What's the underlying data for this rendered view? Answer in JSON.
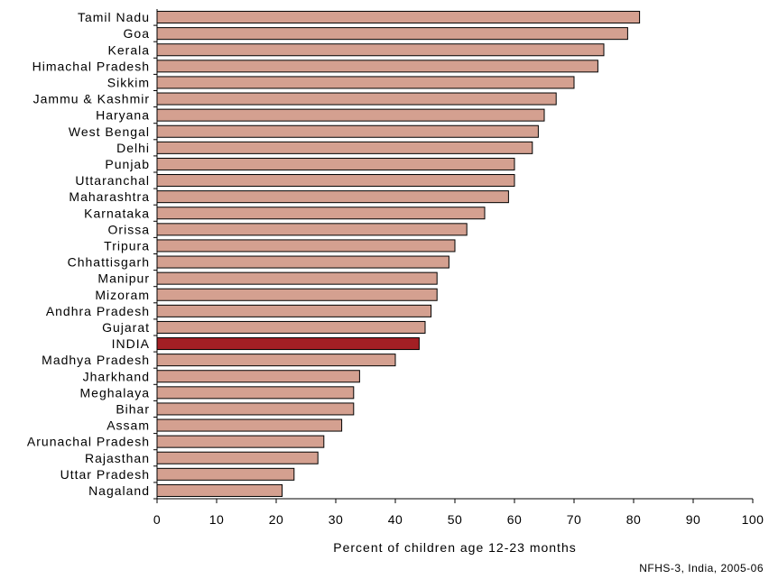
{
  "chart_data": {
    "type": "bar",
    "orientation": "horizontal",
    "categories": [
      "Tamil Nadu",
      "Goa",
      "Kerala",
      "Himachal Pradesh",
      "Sikkim",
      "Jammu & Kashmir",
      "Haryana",
      "West Bengal",
      "Delhi",
      "Punjab",
      "Uttaranchal",
      "Maharashtra",
      "Karnataka",
      "Orissa",
      "Tripura",
      "Chhattisgarh",
      "Manipur",
      "Mizoram",
      "Andhra Pradesh",
      "Gujarat",
      "INDIA",
      "Madhya Pradesh",
      "Jharkhand",
      "Meghalaya",
      "Bihar",
      "Assam",
      "Arunachal Pradesh",
      "Rajasthan",
      "Uttar Pradesh",
      "Nagaland"
    ],
    "values": [
      81,
      79,
      75,
      74,
      70,
      67,
      65,
      64,
      63,
      60,
      60,
      59,
      55,
      52,
      50,
      49,
      47,
      47,
      46,
      45,
      44,
      40,
      34,
      33,
      33,
      31,
      28,
      27,
      23,
      21
    ],
    "highlight_category": "INDIA",
    "xlabel": "Percent of children age 12-23 months",
    "xlim": [
      0,
      100
    ],
    "xticks": [
      0,
      10,
      20,
      30,
      40,
      50,
      60,
      70,
      80,
      90,
      100
    ],
    "grid": false,
    "source": "NFHS-3, India, 2005-06",
    "colors": {
      "bar_fill": "#d4a090",
      "highlight_fill": "#a31f24",
      "bar_stroke": "#000000"
    }
  }
}
